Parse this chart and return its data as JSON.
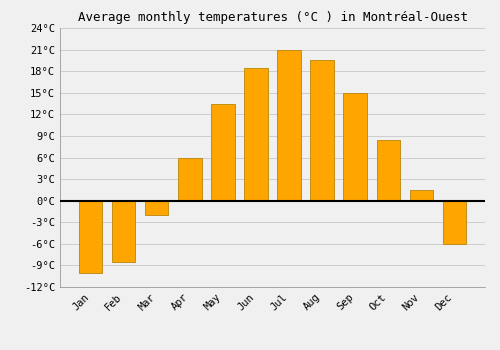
{
  "months": [
    "Jan",
    "Feb",
    "Mar",
    "Apr",
    "May",
    "Jun",
    "Jul",
    "Aug",
    "Sep",
    "Oct",
    "Nov",
    "Dec"
  ],
  "temperatures": [
    -10,
    -8.5,
    -2,
    6,
    13.5,
    18.5,
    21,
    19.5,
    15,
    8.5,
    1.5,
    -6
  ],
  "bar_color": "#FFA500",
  "bar_edge_color": "#B8860B",
  "background_color": "#F0F0F0",
  "grid_color": "#CCCCCC",
  "title": "Average monthly temperatures (°C ) in Montréal-Ouest",
  "title_fontsize": 9,
  "ylim": [
    -12,
    24
  ],
  "yticks": [
    -12,
    -9,
    -6,
    -3,
    0,
    3,
    6,
    9,
    12,
    15,
    18,
    21,
    24
  ],
  "zero_line_color": "#000000",
  "font_family": "monospace",
  "tick_fontsize": 7.5,
  "bar_width": 0.7
}
